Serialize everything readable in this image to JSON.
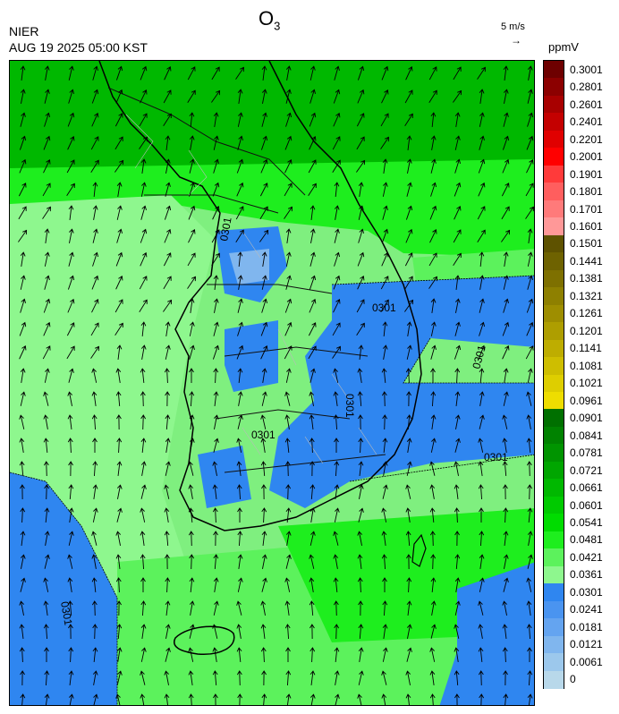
{
  "header": {
    "title": "O",
    "title_sub": "3",
    "org": "NIER",
    "time": "AUG 19 2025 05:00 KST"
  },
  "vector_key": {
    "label": "5 m/s",
    "arrow": "→"
  },
  "legend": {
    "unit": "ppmV",
    "levels": [
      {
        "label": "0.3001",
        "color": "#6e0000"
      },
      {
        "label": "0.2801",
        "color": "#8c0000"
      },
      {
        "label": "0.2601",
        "color": "#a80000"
      },
      {
        "label": "0.2401",
        "color": "#c40000"
      },
      {
        "label": "0.2201",
        "color": "#e00000"
      },
      {
        "label": "0.2001",
        "color": "#ff0000"
      },
      {
        "label": "0.1901",
        "color": "#ff3a3a"
      },
      {
        "label": "0.1801",
        "color": "#ff5e5e"
      },
      {
        "label": "0.1701",
        "color": "#ff7a7a"
      },
      {
        "label": "0.1601",
        "color": "#ff9898"
      },
      {
        "label": "0.1501",
        "color": "#5e5200"
      },
      {
        "label": "0.1441",
        "color": "#6e6200"
      },
      {
        "label": "0.1381",
        "color": "#7e7000"
      },
      {
        "label": "0.1321",
        "color": "#8e8000"
      },
      {
        "label": "0.1261",
        "color": "#9e8e00"
      },
      {
        "label": "0.1201",
        "color": "#ae9e00"
      },
      {
        "label": "0.1141",
        "color": "#bead00"
      },
      {
        "label": "0.1081",
        "color": "#cebe00"
      },
      {
        "label": "0.1021",
        "color": "#dece00"
      },
      {
        "label": "0.0961",
        "color": "#eedd00"
      },
      {
        "label": "0.0901",
        "color": "#007000"
      },
      {
        "label": "0.0841",
        "color": "#008200"
      },
      {
        "label": "0.0781",
        "color": "#009400"
      },
      {
        "label": "0.0721",
        "color": "#00a600"
      },
      {
        "label": "0.0661",
        "color": "#00b800"
      },
      {
        "label": "0.0601",
        "color": "#00ca00"
      },
      {
        "label": "0.0541",
        "color": "#00dc00"
      },
      {
        "label": "0.0481",
        "color": "#1eee1e"
      },
      {
        "label": "0.0421",
        "color": "#5cf25c"
      },
      {
        "label": "0.0361",
        "color": "#8ef78e"
      },
      {
        "label": "0.0301",
        "color": "#2f86f0"
      },
      {
        "label": "0.0241",
        "color": "#4a94f0"
      },
      {
        "label": "0.0181",
        "color": "#64a4f0"
      },
      {
        "label": "0.0121",
        "color": "#80b6ee"
      },
      {
        "label": "0.0061",
        "color": "#9cc8ec"
      },
      {
        "label": "0",
        "color": "#b8d8ea"
      }
    ]
  },
  "map": {
    "colors": {
      "band_high_green": "#00b800",
      "band_mid_green": "#1eee1e",
      "band_light_green": "#5cf25c",
      "band_pale_green": "#8ef78e",
      "band_blue": "#2f86f0",
      "band_light_blue": "#80b6ee"
    },
    "contour_labels": [
      "0301",
      "0301",
      "0301",
      "0301",
      "0301",
      "0301",
      "0301"
    ],
    "wind_arrow_glyph": "↗"
  }
}
